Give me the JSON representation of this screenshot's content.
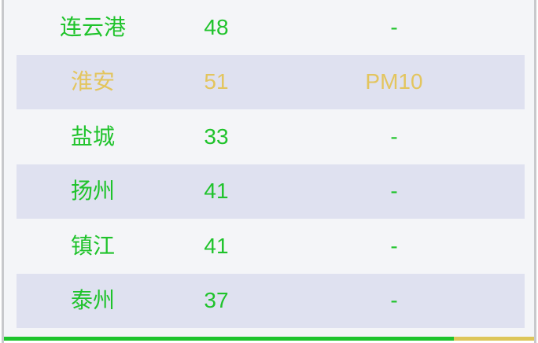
{
  "table": {
    "rows": [
      {
        "city": "连云港",
        "aqi": "48",
        "pollutant": "-",
        "level": "good"
      },
      {
        "city": "淮安",
        "aqi": "51",
        "pollutant": "PM10",
        "level": "moderate"
      },
      {
        "city": "盐城",
        "aqi": "33",
        "pollutant": "-",
        "level": "good"
      },
      {
        "city": "扬州",
        "aqi": "41",
        "pollutant": "-",
        "level": "good"
      },
      {
        "city": "镇江",
        "aqi": "41",
        "pollutant": "-",
        "level": "good"
      },
      {
        "city": "泰州",
        "aqi": "37",
        "pollutant": "-",
        "level": "good"
      }
    ]
  },
  "scale_bar": {
    "segments": [
      {
        "name": "good-green",
        "hex": "#1ec42c",
        "percent": 84.8
      },
      {
        "name": "moderate-yellow",
        "hex": "#ddc659",
        "percent": 15.2
      }
    ]
  },
  "colors": {
    "good_text": "#1fc32b",
    "moderate_text": "#e3c55e",
    "row_alt_bg": "#dfe1f0",
    "panel_bg": "#f4f5f8",
    "border": "#c8c9cc"
  }
}
